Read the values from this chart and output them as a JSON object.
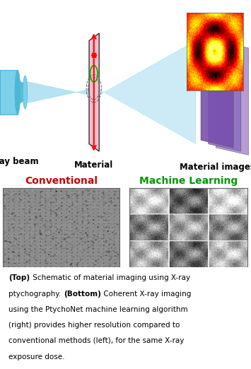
{
  "background_color": "#ffffff",
  "conventional_label": "Conventional",
  "ml_label": "Machine Learning",
  "conventional_color": "#cc0000",
  "ml_color": "#009900",
  "xray_label": "X-ray beam",
  "material_label": "Material",
  "images_label": "Material images",
  "tube_color": "#7ecfea",
  "tube_dark": "#4ab8d8",
  "beam_color": "#aadff0",
  "mat_color": "#f5c0d0",
  "fig_width": 3.55,
  "fig_height": 5.22,
  "dpi": 100
}
